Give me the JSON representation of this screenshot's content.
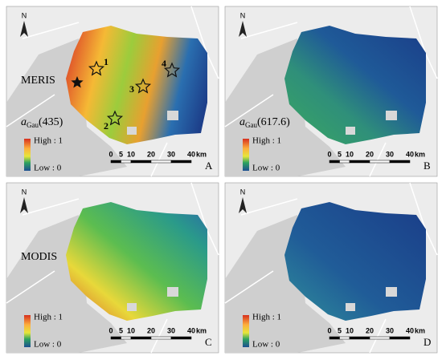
{
  "panels": [
    {
      "letter": "A",
      "sensor": "MERIS",
      "variable": {
        "symbol": "a",
        "subscript": "Gau",
        "wavelength": "(435)"
      },
      "legend": {
        "high": "High : 1",
        "low": "Low : 0"
      },
      "north": "N",
      "stations": [
        "1",
        "2",
        "3",
        "4"
      ],
      "scale": {
        "ticks": [
          "0",
          "5",
          "10",
          "20",
          "30",
          "40"
        ],
        "unit": "km"
      }
    },
    {
      "letter": "B",
      "variable": {
        "symbol": "a",
        "subscript": "Gau",
        "wavelength": "(617.6)"
      },
      "legend": {
        "high": "High : 1",
        "low": "Low : 0"
      },
      "north": "N",
      "scale": {
        "ticks": [
          "0",
          "5",
          "10",
          "20",
          "30",
          "40"
        ],
        "unit": "km"
      }
    },
    {
      "letter": "C",
      "sensor": "MODIS",
      "legend": {
        "high": "High : 1",
        "low": "Low : 0"
      },
      "north": "N",
      "scale": {
        "ticks": [
          "0",
          "5",
          "10",
          "20",
          "30",
          "40"
        ],
        "unit": "km"
      }
    },
    {
      "letter": "D",
      "legend": {
        "high": "High : 1",
        "low": "Low : 0"
      },
      "north": "N",
      "scale": {
        "ticks": [
          "0",
          "5",
          "10",
          "20",
          "30",
          "40"
        ],
        "unit": "km"
      }
    }
  ]
}
